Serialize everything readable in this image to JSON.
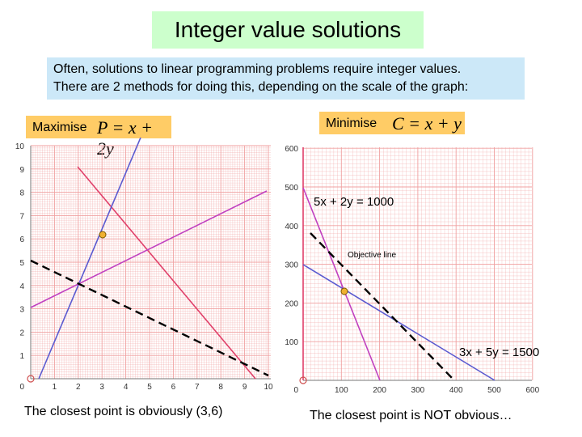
{
  "title": "Integer value solutions",
  "intro": {
    "line1": "Often, solutions to linear programming problems require integer values.",
    "line2": "There are 2 methods for doing this, depending on the scale of the graph:"
  },
  "left": {
    "label": "Maximise",
    "formula": "P = x + 2y",
    "caption": "The closest point is obviously (3,6)",
    "x_ticks": [
      "1",
      "2",
      "3",
      "4",
      "5",
      "6",
      "7",
      "8",
      "9",
      "10"
    ],
    "y_ticks": [
      "1",
      "2",
      "3",
      "4",
      "5",
      "6",
      "7",
      "8",
      "9",
      "10"
    ],
    "origin_label": "0",
    "optimum_point": [
      3,
      6
    ],
    "colors": {
      "grid": "#f0a0a0",
      "red_line": "#e0406a",
      "blue_line": "#5a5ad0",
      "magenta_line": "#c040c0",
      "objective": "#000000",
      "point": "#f0b030"
    }
  },
  "right": {
    "label": "Minimise",
    "formula": "C = x + y",
    "caption": "The closest point is NOT obvious…",
    "x_ticks": [
      "100",
      "200",
      "300",
      "400",
      "500",
      "600"
    ],
    "y_ticks": [
      "100",
      "200",
      "300",
      "400",
      "500",
      "600"
    ],
    "origin_label": "0",
    "constraint_1": "5x + 2y = 1000",
    "constraint_2": "3x + 5y = 1500",
    "objective_label": "Objective line",
    "optimum_point": [
      105,
      235
    ],
    "colors": {
      "grid": "#f0a0a0",
      "red_line": "#e0406a",
      "blue_line": "#5a5ad0",
      "magenta_line": "#c040c0",
      "objective": "#000000",
      "point": "#f0b030"
    }
  }
}
